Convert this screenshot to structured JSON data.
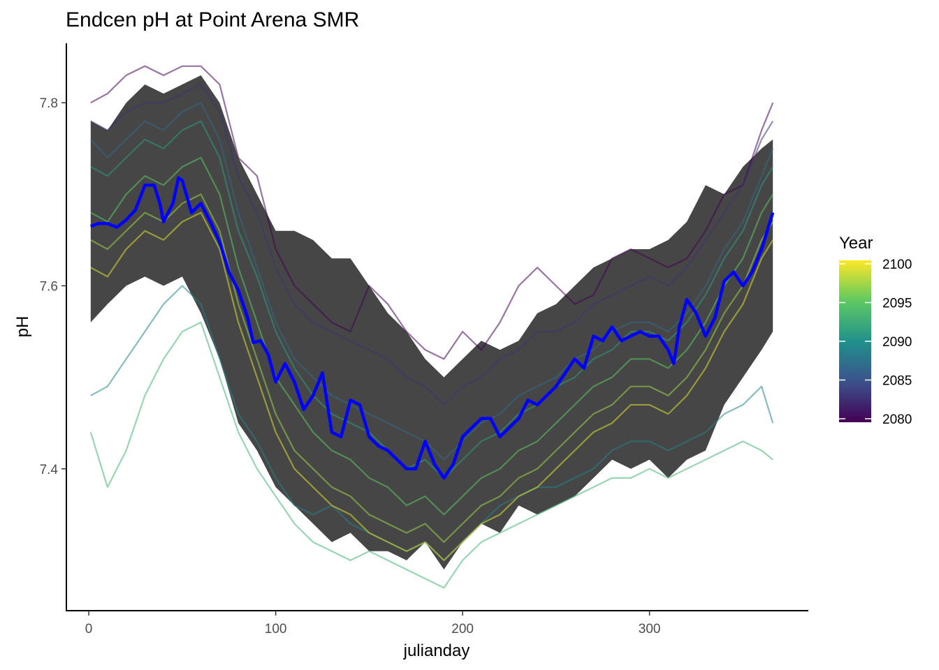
{
  "chart_data": {
    "type": "line",
    "title": "Endcen pH at Point Arena SMR",
    "xlabel": "julianday",
    "ylabel": "pH",
    "xlim": [
      -12,
      385
    ],
    "ylim": [
      7.245,
      7.865
    ],
    "x_ticks": [
      0,
      100,
      200,
      300
    ],
    "x_tick_labels": [
      "0",
      "100",
      "200",
      "300"
    ],
    "y_ticks": [
      7.4,
      7.6,
      7.8
    ],
    "y_tick_labels": [
      "7.4",
      "7.6",
      "7.8"
    ],
    "grid": false,
    "legend": {
      "title": "Year",
      "position": "right",
      "type": "colorbar",
      "min": 2080,
      "max": 2100,
      "ticks": [
        2080,
        2085,
        2090,
        2095,
        2100
      ],
      "tick_labels": [
        "2080",
        "2085",
        "2090",
        "2095",
        "2100"
      ],
      "palette": [
        "#440154",
        "#3b528b",
        "#21918c",
        "#5ec962",
        "#fde725"
      ]
    },
    "ribbon": {
      "color": "#3c3c3c",
      "x": [
        1,
        10,
        20,
        30,
        40,
        50,
        60,
        70,
        80,
        90,
        100,
        110,
        120,
        130,
        140,
        150,
        160,
        170,
        180,
        190,
        200,
        210,
        220,
        230,
        240,
        250,
        260,
        270,
        280,
        290,
        300,
        310,
        320,
        330,
        340,
        350,
        360,
        366
      ],
      "lower": [
        7.56,
        7.58,
        7.6,
        7.61,
        7.6,
        7.61,
        7.57,
        7.52,
        7.45,
        7.42,
        7.38,
        7.36,
        7.34,
        7.32,
        7.33,
        7.31,
        7.31,
        7.3,
        7.32,
        7.29,
        7.32,
        7.34,
        7.33,
        7.36,
        7.35,
        7.36,
        7.37,
        7.39,
        7.41,
        7.4,
        7.41,
        7.39,
        7.41,
        7.42,
        7.47,
        7.5,
        7.53,
        7.55
      ],
      "upper": [
        7.78,
        7.77,
        7.8,
        7.82,
        7.81,
        7.82,
        7.83,
        7.8,
        7.74,
        7.7,
        7.66,
        7.66,
        7.65,
        7.63,
        7.63,
        7.6,
        7.57,
        7.55,
        7.52,
        7.5,
        7.52,
        7.54,
        7.53,
        7.54,
        7.57,
        7.58,
        7.6,
        7.62,
        7.63,
        7.64,
        7.64,
        7.65,
        7.67,
        7.71,
        7.7,
        7.73,
        7.75,
        7.76
      ]
    },
    "series": [
      {
        "year": 2080,
        "x": [
          1,
          10,
          20,
          30,
          40,
          50,
          60,
          70,
          80,
          90,
          100,
          110,
          120,
          130,
          140,
          150,
          160,
          170,
          180,
          190,
          200,
          210,
          220,
          230,
          240,
          250,
          260,
          270,
          280,
          290,
          300,
          310,
          320,
          330,
          340,
          350,
          360,
          366
        ],
        "y": [
          7.8,
          7.81,
          7.83,
          7.84,
          7.83,
          7.84,
          7.84,
          7.82,
          7.74,
          7.72,
          7.64,
          7.6,
          7.58,
          7.56,
          7.55,
          7.6,
          7.58,
          7.55,
          7.53,
          7.52,
          7.55,
          7.53,
          7.56,
          7.6,
          7.62,
          7.6,
          7.58,
          7.59,
          7.63,
          7.64,
          7.63,
          7.62,
          7.63,
          7.66,
          7.7,
          7.71,
          7.77,
          7.8
        ]
      },
      {
        "year": 2083,
        "x": [
          1,
          10,
          20,
          30,
          40,
          50,
          60,
          70,
          80,
          90,
          100,
          110,
          120,
          130,
          140,
          150,
          160,
          170,
          180,
          190,
          200,
          210,
          220,
          230,
          240,
          250,
          260,
          270,
          280,
          290,
          300,
          310,
          320,
          330,
          340,
          350,
          360,
          366
        ],
        "y": [
          7.78,
          7.77,
          7.79,
          7.8,
          7.8,
          7.81,
          7.82,
          7.79,
          7.72,
          7.68,
          7.62,
          7.58,
          7.56,
          7.55,
          7.54,
          7.53,
          7.52,
          7.5,
          7.49,
          7.47,
          7.49,
          7.5,
          7.52,
          7.53,
          7.55,
          7.55,
          7.56,
          7.58,
          7.59,
          7.6,
          7.61,
          7.6,
          7.62,
          7.65,
          7.68,
          7.71,
          7.76,
          7.78
        ]
      },
      {
        "year": 2087,
        "x": [
          1,
          10,
          20,
          30,
          40,
          50,
          60,
          70,
          80,
          90,
          100,
          110,
          120,
          130,
          140,
          150,
          160,
          170,
          180,
          190,
          200,
          210,
          220,
          230,
          240,
          250,
          260,
          270,
          280,
          290,
          300,
          310,
          320,
          330,
          340,
          350,
          360,
          366
        ],
        "y": [
          7.76,
          7.74,
          7.76,
          7.78,
          7.77,
          7.79,
          7.8,
          7.76,
          7.68,
          7.62,
          7.56,
          7.52,
          7.5,
          7.48,
          7.47,
          7.46,
          7.45,
          7.44,
          7.43,
          7.41,
          7.43,
          7.45,
          7.46,
          7.48,
          7.49,
          7.5,
          7.52,
          7.53,
          7.55,
          7.56,
          7.56,
          7.55,
          7.57,
          7.6,
          7.64,
          7.67,
          7.72,
          7.75
        ]
      },
      {
        "year": 2089,
        "x": [
          1,
          10,
          20,
          30,
          40,
          50,
          60,
          70,
          80,
          90,
          100,
          110,
          120,
          130,
          140,
          150,
          160,
          170,
          180,
          190,
          200,
          210,
          220,
          230,
          240,
          250,
          260,
          270,
          280,
          290,
          300,
          310,
          320,
          330,
          340,
          350,
          360,
          366
        ],
        "y": [
          7.48,
          7.49,
          7.52,
          7.55,
          7.58,
          7.6,
          7.58,
          7.52,
          7.46,
          7.43,
          7.39,
          7.36,
          7.35,
          7.36,
          7.34,
          7.33,
          7.32,
          7.31,
          7.32,
          7.3,
          7.32,
          7.34,
          7.36,
          7.37,
          7.38,
          7.38,
          7.39,
          7.4,
          7.42,
          7.43,
          7.43,
          7.42,
          7.43,
          7.44,
          7.46,
          7.47,
          7.49,
          7.45
        ]
      },
      {
        "year": 2091,
        "x": [
          1,
          10,
          20,
          30,
          40,
          50,
          60,
          70,
          80,
          90,
          100,
          110,
          120,
          130,
          140,
          150,
          160,
          170,
          180,
          190,
          200,
          210,
          220,
          230,
          240,
          250,
          260,
          270,
          280,
          290,
          300,
          310,
          320,
          330,
          340,
          350,
          360,
          366
        ],
        "y": [
          7.73,
          7.72,
          7.74,
          7.76,
          7.75,
          7.77,
          7.78,
          7.74,
          7.66,
          7.61,
          7.55,
          7.51,
          7.48,
          7.46,
          7.45,
          7.44,
          7.42,
          7.4,
          7.41,
          7.39,
          7.41,
          7.43,
          7.44,
          7.46,
          7.47,
          7.49,
          7.5,
          7.52,
          7.53,
          7.55,
          7.55,
          7.54,
          7.56,
          7.59,
          7.63,
          7.66,
          7.71,
          7.73
        ]
      },
      {
        "year": 2093,
        "x": [
          1,
          10,
          20,
          30,
          40,
          50,
          60,
          70,
          80,
          90,
          100,
          110,
          120,
          130,
          140,
          150,
          160,
          170,
          180,
          190,
          200,
          210,
          220,
          230,
          240,
          250,
          260,
          270,
          280,
          290,
          300,
          310,
          320,
          330,
          340,
          350,
          360,
          366
        ],
        "y": [
          7.44,
          7.38,
          7.42,
          7.48,
          7.52,
          7.55,
          7.56,
          7.5,
          7.44,
          7.4,
          7.37,
          7.34,
          7.32,
          7.31,
          7.3,
          7.31,
          7.3,
          7.29,
          7.28,
          7.27,
          7.3,
          7.32,
          7.33,
          7.34,
          7.35,
          7.36,
          7.37,
          7.38,
          7.39,
          7.39,
          7.4,
          7.39,
          7.4,
          7.41,
          7.42,
          7.43,
          7.42,
          7.41
        ]
      },
      {
        "year": 2095,
        "x": [
          1,
          10,
          20,
          30,
          40,
          50,
          60,
          70,
          80,
          90,
          100,
          110,
          120,
          130,
          140,
          150,
          160,
          170,
          180,
          190,
          200,
          210,
          220,
          230,
          240,
          250,
          260,
          270,
          280,
          290,
          300,
          310,
          320,
          330,
          340,
          350,
          360,
          366
        ],
        "y": [
          7.68,
          7.67,
          7.7,
          7.72,
          7.71,
          7.73,
          7.74,
          7.7,
          7.62,
          7.56,
          7.5,
          7.47,
          7.44,
          7.42,
          7.41,
          7.39,
          7.38,
          7.36,
          7.37,
          7.35,
          7.37,
          7.39,
          7.4,
          7.42,
          7.43,
          7.45,
          7.47,
          7.49,
          7.5,
          7.52,
          7.52,
          7.51,
          7.53,
          7.56,
          7.6,
          7.63,
          7.68,
          7.7
        ]
      },
      {
        "year": 2097,
        "x": [
          1,
          10,
          20,
          30,
          40,
          50,
          60,
          70,
          80,
          90,
          100,
          110,
          120,
          130,
          140,
          150,
          160,
          170,
          180,
          190,
          200,
          210,
          220,
          230,
          240,
          250,
          260,
          270,
          280,
          290,
          300,
          310,
          320,
          330,
          340,
          350,
          360,
          366
        ],
        "y": [
          7.65,
          7.64,
          7.66,
          7.68,
          7.67,
          7.69,
          7.7,
          7.66,
          7.58,
          7.52,
          7.46,
          7.42,
          7.4,
          7.38,
          7.37,
          7.35,
          7.34,
          7.33,
          7.34,
          7.32,
          7.34,
          7.36,
          7.37,
          7.39,
          7.4,
          7.42,
          7.44,
          7.46,
          7.47,
          7.49,
          7.49,
          7.48,
          7.5,
          7.53,
          7.57,
          7.6,
          7.65,
          7.67
        ]
      },
      {
        "year": 2099,
        "x": [
          1,
          10,
          20,
          30,
          40,
          50,
          60,
          70,
          80,
          90,
          100,
          110,
          120,
          130,
          140,
          150,
          160,
          170,
          180,
          190,
          200,
          210,
          220,
          230,
          240,
          250,
          260,
          270,
          280,
          290,
          300,
          310,
          320,
          330,
          340,
          350,
          360,
          366
        ],
        "y": [
          7.62,
          7.61,
          7.64,
          7.66,
          7.65,
          7.67,
          7.68,
          7.64,
          7.56,
          7.5,
          7.44,
          7.4,
          7.38,
          7.36,
          7.35,
          7.33,
          7.32,
          7.31,
          7.32,
          7.3,
          7.32,
          7.34,
          7.35,
          7.37,
          7.38,
          7.4,
          7.42,
          7.44,
          7.45,
          7.47,
          7.47,
          7.46,
          7.48,
          7.51,
          7.55,
          7.58,
          7.63,
          7.65
        ]
      }
    ],
    "mean_line": {
      "color": "#0000ff",
      "x": [
        1,
        5,
        10,
        15,
        20,
        25,
        30,
        35,
        38,
        40,
        45,
        48,
        50,
        55,
        60,
        65,
        70,
        75,
        80,
        85,
        88,
        92,
        96,
        100,
        105,
        110,
        115,
        120,
        125,
        130,
        135,
        140,
        145,
        150,
        155,
        160,
        165,
        170,
        175,
        180,
        185,
        190,
        195,
        200,
        205,
        210,
        215,
        220,
        225,
        230,
        235,
        240,
        245,
        250,
        255,
        260,
        265,
        270,
        275,
        280,
        285,
        290,
        295,
        300,
        305,
        310,
        313,
        316,
        320,
        325,
        330,
        335,
        340,
        345,
        350,
        355,
        360,
        366
      ],
      "y": [
        7.665,
        7.668,
        7.668,
        7.664,
        7.672,
        7.683,
        7.71,
        7.71,
        7.69,
        7.67,
        7.69,
        7.718,
        7.715,
        7.68,
        7.69,
        7.67,
        7.648,
        7.615,
        7.595,
        7.565,
        7.538,
        7.54,
        7.525,
        7.495,
        7.515,
        7.495,
        7.465,
        7.48,
        7.505,
        7.44,
        7.435,
        7.475,
        7.47,
        7.435,
        7.425,
        7.42,
        7.41,
        7.4,
        7.4,
        7.43,
        7.405,
        7.39,
        7.405,
        7.435,
        7.445,
        7.455,
        7.455,
        7.435,
        7.445,
        7.455,
        7.475,
        7.47,
        7.48,
        7.49,
        7.505,
        7.52,
        7.51,
        7.545,
        7.54,
        7.555,
        7.54,
        7.545,
        7.55,
        7.545,
        7.545,
        7.53,
        7.515,
        7.555,
        7.585,
        7.57,
        7.545,
        7.565,
        7.605,
        7.615,
        7.6,
        7.615,
        7.64,
        7.68
      ]
    }
  }
}
